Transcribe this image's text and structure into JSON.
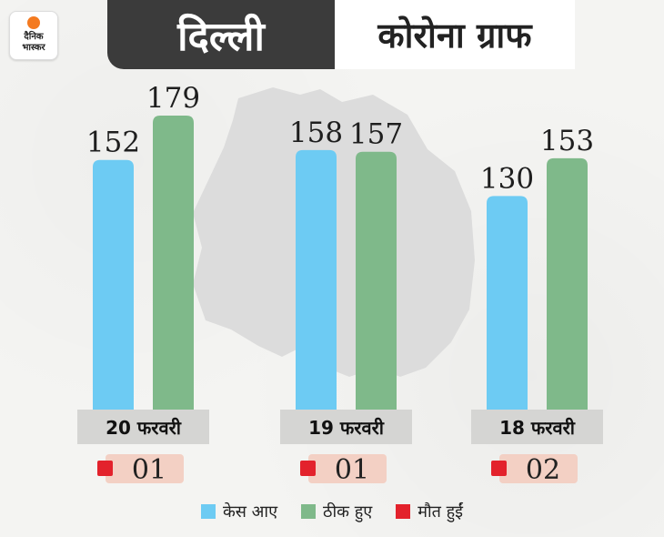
{
  "brand": {
    "line1": "दैनिक",
    "line2": "भास्कर",
    "accent_color": "#f47a20"
  },
  "header": {
    "city": "दिल्ली",
    "title": "कोरोना ग्राफ"
  },
  "colors": {
    "cases": "#6dcbf3",
    "recovered": "#7fb98a",
    "deaths": "#e3222c",
    "header_bg": "#3b3b3b",
    "date_bg": "#d5d5d3",
    "death_bg": "#f3d0c4",
    "map_fill": "#dcdcdc"
  },
  "legend": {
    "cases": "केस आए",
    "recovered": "ठीक हुए",
    "deaths": "मौत हुईं"
  },
  "chart_data": {
    "type": "bar",
    "categories": [
      "20 फरवरी",
      "19 फरवरी",
      "18 फरवरी"
    ],
    "series": [
      {
        "name": "केस आए",
        "values": [
          152,
          158,
          130
        ]
      },
      {
        "name": "ठीक हुए",
        "values": [
          179,
          157,
          153
        ]
      },
      {
        "name": "मौत हुईं",
        "values": [
          "01",
          "01",
          "02"
        ]
      }
    ],
    "ylim": [
      0,
      179
    ],
    "grid": false,
    "legend_position": "bottom"
  }
}
